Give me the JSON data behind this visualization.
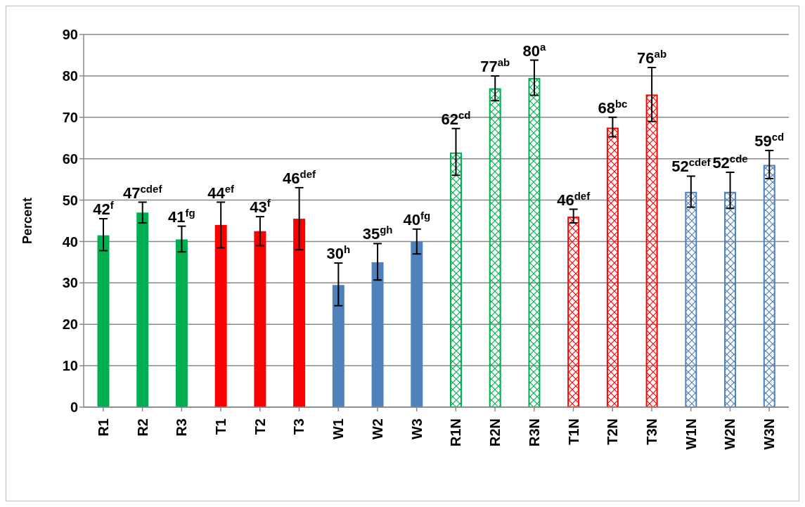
{
  "chart_data": {
    "type": "bar",
    "ylabel": "Percent",
    "stacked": true,
    "categories": [
      "R1",
      "R2",
      "R3",
      "T1",
      "T2",
      "T3",
      "W1",
      "W2",
      "W3",
      "R1N",
      "R2N",
      "R3N",
      "T1N",
      "T2N",
      "T3N",
      "W1N",
      "W2N",
      "W3N"
    ],
    "series": [
      {
        "colors": [
          "#00b050",
          "#00b050",
          "#00b050",
          "#ff0000",
          "#ff0000",
          "#ff0000",
          "#4f81bd",
          "#4f81bd",
          "#4f81bd",
          null,
          null,
          null,
          null,
          null,
          null,
          null,
          null,
          null
        ],
        "values": [
          41.5,
          47,
          40.5,
          44,
          42.5,
          45.5,
          29.5,
          35,
          40,
          null,
          null,
          null,
          null,
          null,
          null,
          null,
          null,
          null
        ],
        "errors": [
          [
            37.8,
            45.5
          ],
          [
            44.5,
            49.5
          ],
          [
            37.5,
            43.7
          ],
          [
            38.5,
            49.5
          ],
          [
            39,
            46
          ],
          [
            38,
            53
          ],
          [
            24.5,
            34.8
          ],
          [
            30.7,
            39.5
          ],
          [
            37,
            43
          ],
          null,
          null,
          null,
          null,
          null,
          null,
          null,
          null,
          null
        ],
        "value_labels": [
          "42$^{f}$",
          "47$^{cdef}$",
          "41$^{fg}$",
          "44$^{ef}$",
          "43$^{f}$",
          "46$^{def}$",
          "30$^{h}$",
          "35$^{gh}$",
          "40$^{fg}$",
          null,
          null,
          null,
          null,
          null,
          null,
          null,
          null,
          null
        ]
      },
      {
        "colors": [
          null,
          null,
          null,
          null,
          null,
          null,
          null,
          null,
          null,
          "#00b050",
          "#00b050",
          "#00b050",
          "#ff0000",
          "#ff0000",
          "#ff0000",
          "#4f81bd",
          "#4f81bd",
          "#4f81bd"
        ],
        "values": [
          null,
          null,
          null,
          null,
          null,
          null,
          null,
          null,
          null,
          61.5,
          77,
          79.5,
          46,
          67.5,
          75.5,
          52,
          52,
          58.5
        ],
        "errors": [
          null,
          null,
          null,
          null,
          null,
          null,
          null,
          null,
          null,
          [
            56,
            67.3
          ],
          [
            74,
            80
          ],
          [
            75.3,
            83.8
          ],
          [
            44.5,
            47.8
          ],
          [
            65.3,
            70
          ],
          [
            69,
            82
          ],
          [
            48.3,
            55.8
          ],
          [
            48,
            56.7
          ],
          [
            55.2,
            62
          ]
        ],
        "value_labels": [
          null,
          null,
          null,
          null,
          null,
          null,
          null,
          null,
          null,
          "62$^{cd}$",
          "77$^{ab}$",
          "80$^{a}$",
          "46$^{def}$",
          "68$^{bc}$",
          "76$^{ab}$",
          "52$^{cdef}$",
          "52$^{cde}$",
          "59$^{cd}$"
        ]
      }
    ],
    "ylim": [
      0,
      90
    ],
    "yticks": [
      0,
      10,
      20,
      30,
      40,
      50,
      60,
      70,
      80,
      90
    ],
    "grid": "y",
    "legend": false
  }
}
